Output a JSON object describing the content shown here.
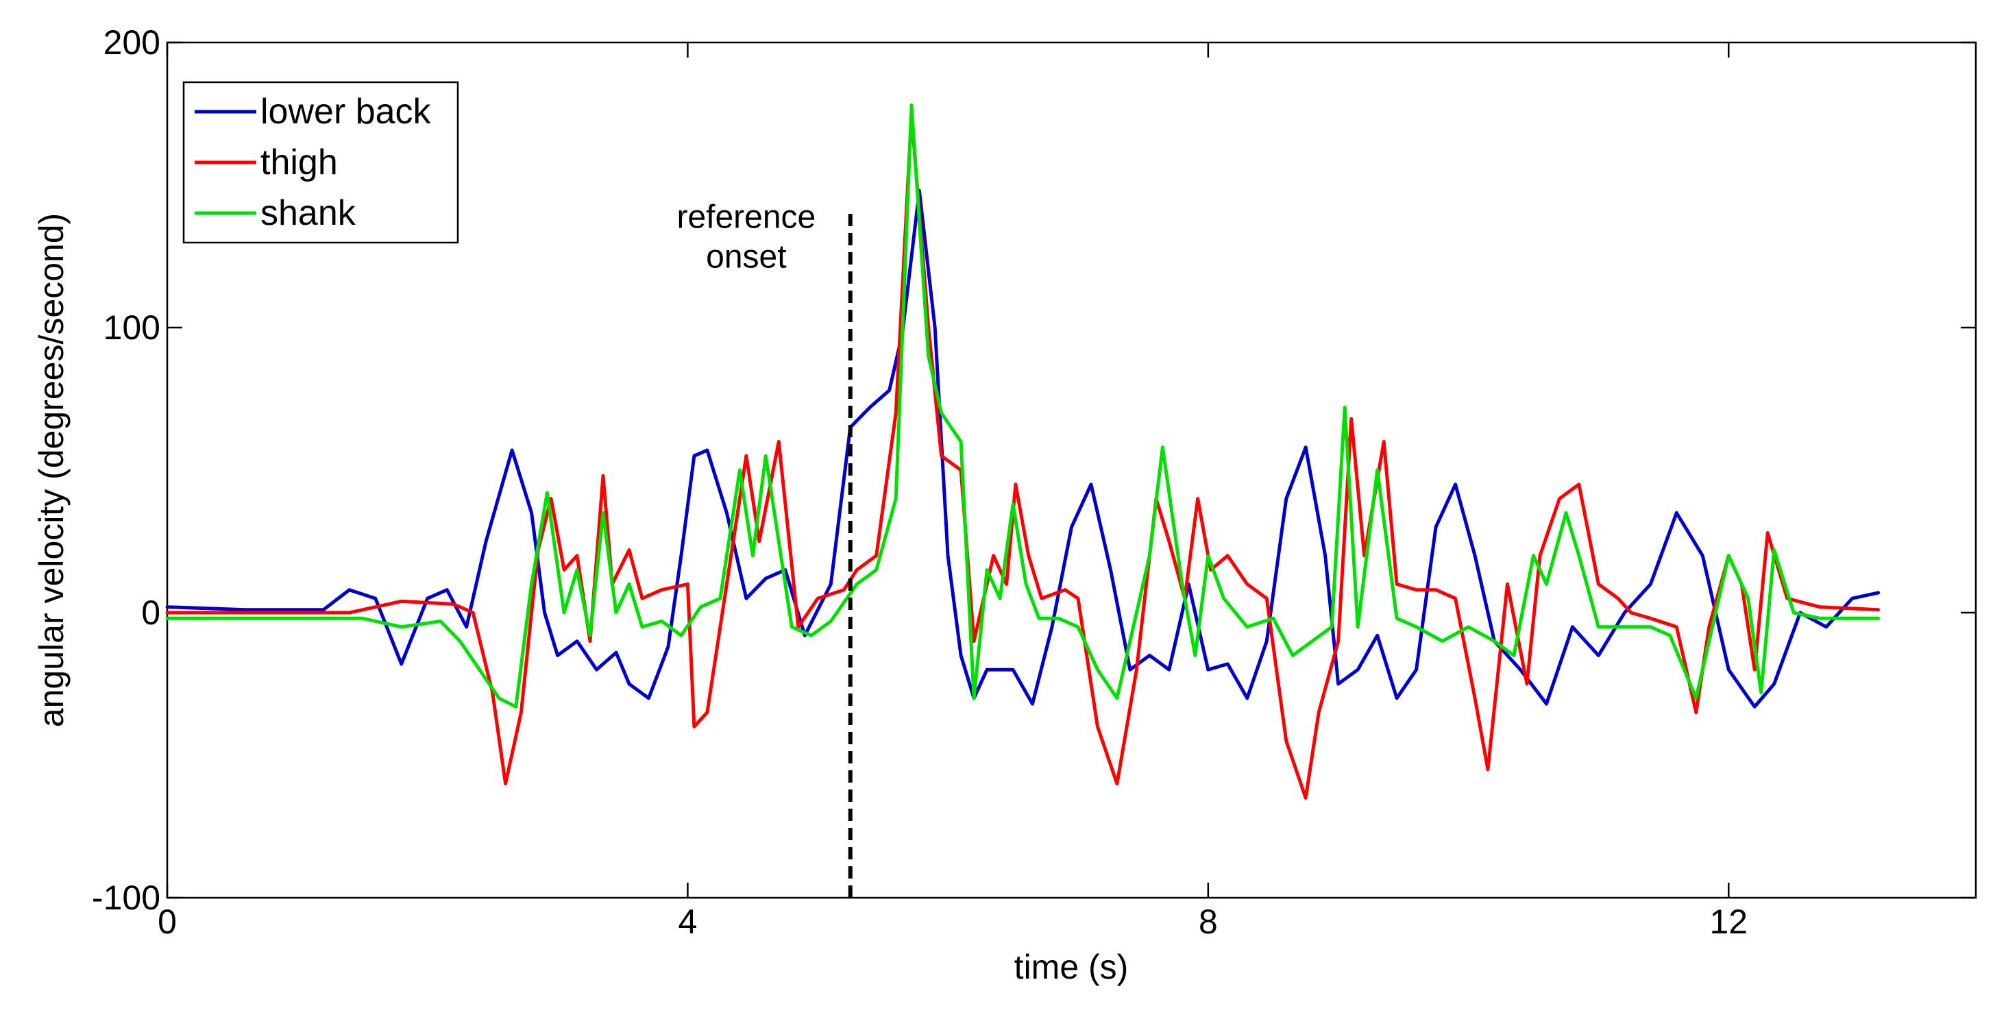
{
  "chart_data": {
    "type": "line",
    "title": "",
    "xlabel": "time (s)",
    "ylabel": "angular velocity (degrees/second)",
    "xlim": [
      0,
      13.9
    ],
    "ylim": [
      -100,
      200
    ],
    "xticks": [
      0,
      4,
      8,
      12
    ],
    "yticks": [
      -100,
      0,
      100,
      200
    ],
    "xtick_labels": [
      "0",
      "4",
      "8",
      "12"
    ],
    "ytick_labels": [
      "-100",
      "0",
      "100",
      "200"
    ],
    "grid": false,
    "legend_position": "top-left",
    "series": [
      {
        "name": "lower back",
        "color": "#0000cc",
        "points": [
          [
            0,
            2
          ],
          [
            0.6,
            1
          ],
          [
            1.2,
            1
          ],
          [
            1.4,
            8
          ],
          [
            1.6,
            5
          ],
          [
            1.8,
            -18
          ],
          [
            2.0,
            5
          ],
          [
            2.15,
            8
          ],
          [
            2.3,
            -5
          ],
          [
            2.45,
            25
          ],
          [
            2.65,
            57
          ],
          [
            2.8,
            35
          ],
          [
            2.9,
            0
          ],
          [
            3.0,
            -15
          ],
          [
            3.15,
            -10
          ],
          [
            3.3,
            -20
          ],
          [
            3.45,
            -14
          ],
          [
            3.55,
            -25
          ],
          [
            3.7,
            -30
          ],
          [
            3.85,
            -12
          ],
          [
            3.95,
            20
          ],
          [
            4.05,
            55
          ],
          [
            4.15,
            57
          ],
          [
            4.3,
            35
          ],
          [
            4.45,
            5
          ],
          [
            4.6,
            12
          ],
          [
            4.75,
            15
          ],
          [
            4.9,
            -8
          ],
          [
            5.1,
            10
          ],
          [
            5.25,
            65
          ],
          [
            5.4,
            72
          ],
          [
            5.55,
            78
          ],
          [
            5.65,
            98
          ],
          [
            5.78,
            148
          ],
          [
            5.9,
            100
          ],
          [
            6.0,
            20
          ],
          [
            6.1,
            -15
          ],
          [
            6.2,
            -30
          ],
          [
            6.3,
            -20
          ],
          [
            6.5,
            -20
          ],
          [
            6.65,
            -32
          ],
          [
            6.8,
            -5
          ],
          [
            6.95,
            30
          ],
          [
            7.1,
            45
          ],
          [
            7.25,
            15
          ],
          [
            7.4,
            -20
          ],
          [
            7.55,
            -15
          ],
          [
            7.7,
            -20
          ],
          [
            7.85,
            10
          ],
          [
            8.0,
            -20
          ],
          [
            8.15,
            -18
          ],
          [
            8.3,
            -30
          ],
          [
            8.45,
            -10
          ],
          [
            8.6,
            40
          ],
          [
            8.75,
            58
          ],
          [
            8.9,
            20
          ],
          [
            9.0,
            -25
          ],
          [
            9.15,
            -20
          ],
          [
            9.3,
            -8
          ],
          [
            9.45,
            -30
          ],
          [
            9.6,
            -20
          ],
          [
            9.75,
            30
          ],
          [
            9.9,
            45
          ],
          [
            10.05,
            20
          ],
          [
            10.2,
            -10
          ],
          [
            10.4,
            -20
          ],
          [
            10.6,
            -32
          ],
          [
            10.8,
            -5
          ],
          [
            11.0,
            -15
          ],
          [
            11.2,
            0
          ],
          [
            11.4,
            10
          ],
          [
            11.6,
            35
          ],
          [
            11.8,
            20
          ],
          [
            12.0,
            -20
          ],
          [
            12.2,
            -33
          ],
          [
            12.35,
            -25
          ],
          [
            12.55,
            0
          ],
          [
            12.75,
            -5
          ],
          [
            12.95,
            5
          ],
          [
            13.15,
            7
          ]
        ]
      },
      {
        "name": "thigh",
        "color": "#ff0000",
        "points": [
          [
            0,
            0
          ],
          [
            0.8,
            0
          ],
          [
            1.4,
            0
          ],
          [
            1.8,
            4
          ],
          [
            2.2,
            3
          ],
          [
            2.35,
            0
          ],
          [
            2.5,
            -28
          ],
          [
            2.6,
            -60
          ],
          [
            2.72,
            -35
          ],
          [
            2.85,
            22
          ],
          [
            2.95,
            40
          ],
          [
            3.05,
            15
          ],
          [
            3.15,
            20
          ],
          [
            3.25,
            -10
          ],
          [
            3.35,
            48
          ],
          [
            3.42,
            10
          ],
          [
            3.55,
            22
          ],
          [
            3.65,
            5
          ],
          [
            3.8,
            8
          ],
          [
            4.0,
            10
          ],
          [
            4.05,
            -40
          ],
          [
            4.15,
            -35
          ],
          [
            4.3,
            10
          ],
          [
            4.45,
            55
          ],
          [
            4.55,
            25
          ],
          [
            4.7,
            60
          ],
          [
            4.85,
            -5
          ],
          [
            5.0,
            5
          ],
          [
            5.2,
            8
          ],
          [
            5.3,
            15
          ],
          [
            5.45,
            20
          ],
          [
            5.6,
            70
          ],
          [
            5.72,
            175
          ],
          [
            5.85,
            100
          ],
          [
            5.95,
            55
          ],
          [
            6.1,
            50
          ],
          [
            6.2,
            -10
          ],
          [
            6.35,
            20
          ],
          [
            6.45,
            10
          ],
          [
            6.52,
            45
          ],
          [
            6.62,
            20
          ],
          [
            6.72,
            5
          ],
          [
            6.9,
            8
          ],
          [
            7.0,
            5
          ],
          [
            7.15,
            -40
          ],
          [
            7.3,
            -60
          ],
          [
            7.45,
            -20
          ],
          [
            7.6,
            40
          ],
          [
            7.7,
            25
          ],
          [
            7.82,
            5
          ],
          [
            7.92,
            40
          ],
          [
            8.02,
            15
          ],
          [
            8.15,
            20
          ],
          [
            8.3,
            10
          ],
          [
            8.45,
            5
          ],
          [
            8.6,
            -45
          ],
          [
            8.75,
            -65
          ],
          [
            8.85,
            -35
          ],
          [
            9.0,
            -10
          ],
          [
            9.1,
            68
          ],
          [
            9.2,
            20
          ],
          [
            9.35,
            60
          ],
          [
            9.45,
            10
          ],
          [
            9.6,
            8
          ],
          [
            9.75,
            8
          ],
          [
            9.9,
            5
          ],
          [
            10.05,
            -30
          ],
          [
            10.15,
            -55
          ],
          [
            10.3,
            10
          ],
          [
            10.45,
            -25
          ],
          [
            10.55,
            20
          ],
          [
            10.7,
            40
          ],
          [
            10.85,
            45
          ],
          [
            11.0,
            10
          ],
          [
            11.15,
            5
          ],
          [
            11.25,
            0
          ],
          [
            11.4,
            -2
          ],
          [
            11.6,
            -5
          ],
          [
            11.75,
            -35
          ],
          [
            11.85,
            -5
          ],
          [
            12.0,
            20
          ],
          [
            12.1,
            10
          ],
          [
            12.2,
            -20
          ],
          [
            12.3,
            28
          ],
          [
            12.45,
            5
          ],
          [
            12.7,
            2
          ],
          [
            13.15,
            1
          ]
        ]
      },
      {
        "name": "shank",
        "color": "#00e000",
        "points": [
          [
            0,
            -2
          ],
          [
            1.0,
            -2
          ],
          [
            1.5,
            -2
          ],
          [
            1.8,
            -5
          ],
          [
            2.1,
            -3
          ],
          [
            2.25,
            -10
          ],
          [
            2.4,
            -20
          ],
          [
            2.55,
            -30
          ],
          [
            2.68,
            -33
          ],
          [
            2.8,
            10
          ],
          [
            2.92,
            42
          ],
          [
            3.05,
            0
          ],
          [
            3.15,
            15
          ],
          [
            3.25,
            -8
          ],
          [
            3.35,
            35
          ],
          [
            3.45,
            0
          ],
          [
            3.55,
            10
          ],
          [
            3.65,
            -5
          ],
          [
            3.8,
            -3
          ],
          [
            3.95,
            -8
          ],
          [
            4.1,
            2
          ],
          [
            4.25,
            5
          ],
          [
            4.4,
            50
          ],
          [
            4.5,
            20
          ],
          [
            4.6,
            55
          ],
          [
            4.7,
            25
          ],
          [
            4.8,
            -5
          ],
          [
            4.95,
            -8
          ],
          [
            5.1,
            -3
          ],
          [
            5.3,
            10
          ],
          [
            5.45,
            15
          ],
          [
            5.6,
            40
          ],
          [
            5.72,
            178
          ],
          [
            5.85,
            90
          ],
          [
            5.95,
            70
          ],
          [
            6.1,
            60
          ],
          [
            6.2,
            -30
          ],
          [
            6.3,
            15
          ],
          [
            6.4,
            5
          ],
          [
            6.5,
            38
          ],
          [
            6.6,
            10
          ],
          [
            6.7,
            -2
          ],
          [
            6.85,
            -2
          ],
          [
            7.0,
            -5
          ],
          [
            7.15,
            -20
          ],
          [
            7.3,
            -30
          ],
          [
            7.45,
            0
          ],
          [
            7.55,
            20
          ],
          [
            7.65,
            58
          ],
          [
            7.8,
            10
          ],
          [
            7.9,
            -15
          ],
          [
            8.0,
            20
          ],
          [
            8.12,
            5
          ],
          [
            8.3,
            -5
          ],
          [
            8.5,
            -2
          ],
          [
            8.65,
            -15
          ],
          [
            8.8,
            -10
          ],
          [
            8.95,
            -5
          ],
          [
            9.05,
            72
          ],
          [
            9.15,
            -5
          ],
          [
            9.3,
            50
          ],
          [
            9.45,
            -2
          ],
          [
            9.6,
            -5
          ],
          [
            9.8,
            -10
          ],
          [
            10.0,
            -5
          ],
          [
            10.2,
            -10
          ],
          [
            10.35,
            -15
          ],
          [
            10.5,
            20
          ],
          [
            10.6,
            10
          ],
          [
            10.75,
            35
          ],
          [
            10.85,
            20
          ],
          [
            11.0,
            -5
          ],
          [
            11.2,
            -5
          ],
          [
            11.4,
            -5
          ],
          [
            11.55,
            -8
          ],
          [
            11.75,
            -30
          ],
          [
            11.85,
            -10
          ],
          [
            12.0,
            20
          ],
          [
            12.15,
            5
          ],
          [
            12.25,
            -28
          ],
          [
            12.35,
            22
          ],
          [
            12.5,
            0
          ],
          [
            12.7,
            -2
          ],
          [
            13.15,
            -2
          ]
        ]
      }
    ],
    "annotations": [
      {
        "type": "vline",
        "x": 5.25,
        "y_from": -100,
        "y_to": 140,
        "style": "dashed",
        "color": "#000000"
      },
      {
        "type": "text",
        "lines": [
          "reference",
          "onset"
        ],
        "x": 4.45,
        "y": 135
      }
    ]
  }
}
